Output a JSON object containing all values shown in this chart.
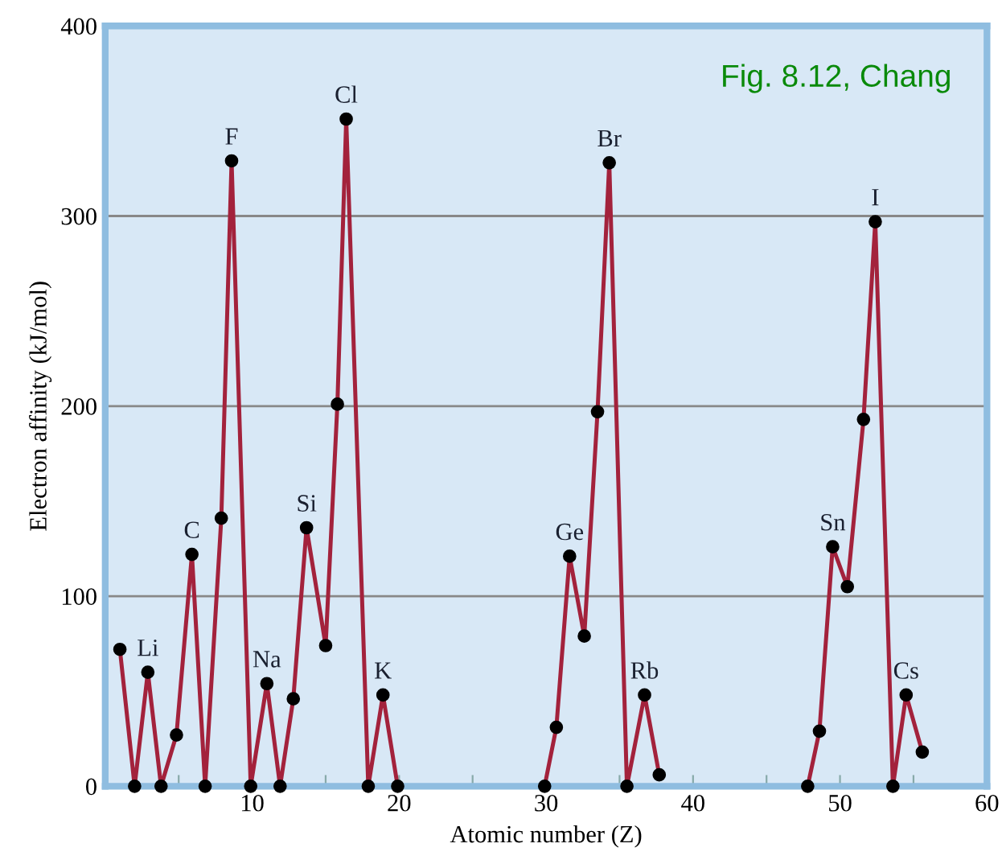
{
  "chart_data": {
    "type": "line",
    "xlabel": "Atomic number (Z)",
    "ylabel": "Electron affinity (kJ/mol)",
    "x": [
      1.0,
      2.0,
      2.9,
      3.8,
      4.85,
      5.9,
      6.8,
      7.9,
      8.6,
      9.9,
      11.0,
      11.9,
      12.8,
      13.7,
      15.0,
      15.8,
      16.4,
      17.9,
      18.9,
      19.9,
      25,
      29.9,
      30.7,
      31.6,
      32.6,
      33.5,
      34.3,
      35.5,
      36.7,
      37.7,
      43,
      47.8,
      48.6,
      49.5,
      50.5,
      51.6,
      52.4,
      53.6,
      54.5,
      55.6
    ],
    "series": [
      {
        "color": "#a3223c",
        "values": [
          72,
          0,
          60,
          0,
          27,
          122,
          0,
          141,
          329,
          0,
          54,
          0,
          46,
          136,
          74,
          201,
          351,
          0,
          48,
          0,
          null,
          0,
          31,
          121,
          79,
          197,
          328,
          0,
          48,
          6,
          null,
          0,
          29,
          126,
          105,
          193,
          297,
          0,
          48,
          18
        ]
      }
    ],
    "marker": "circle",
    "line_style": "solid",
    "grid": "y",
    "xlim": [
      0,
      60
    ],
    "ylim": [
      0,
      400
    ],
    "xticks": [
      {
        "value": 5,
        "label": null
      },
      10,
      {
        "value": 15,
        "label": null
      },
      20,
      {
        "value": 25,
        "label": null
      },
      30,
      {
        "value": 35,
        "label": null
      },
      40,
      {
        "value": 45,
        "label": null
      },
      50,
      {
        "value": 55,
        "label": null
      },
      60
    ],
    "yticks": [
      0,
      100,
      200,
      300,
      400
    ],
    "annotations": [
      {
        "text": "Li",
        "x": 2.9,
        "y": 60
      },
      {
        "text": "C",
        "x": 5.9,
        "y": 122
      },
      {
        "text": "F",
        "x": 8.6,
        "y": 329
      },
      {
        "text": "Na",
        "x": 11.0,
        "y": 54
      },
      {
        "text": "Si",
        "x": 13.7,
        "y": 136
      },
      {
        "text": "Cl",
        "x": 16.4,
        "y": 351
      },
      {
        "text": "K",
        "x": 18.9,
        "y": 48
      },
      {
        "text": "Ge",
        "x": 31.6,
        "y": 121
      },
      {
        "text": "Br",
        "x": 34.3,
        "y": 328
      },
      {
        "text": "Rb",
        "x": 36.7,
        "y": 48
      },
      {
        "text": "Sn",
        "x": 49.5,
        "y": 126
      },
      {
        "text": "I",
        "x": 52.4,
        "y": 297
      },
      {
        "text": "Cs",
        "x": 54.5,
        "y": 48
      },
      "Fig. 8.12, Chang"
    ]
  }
}
